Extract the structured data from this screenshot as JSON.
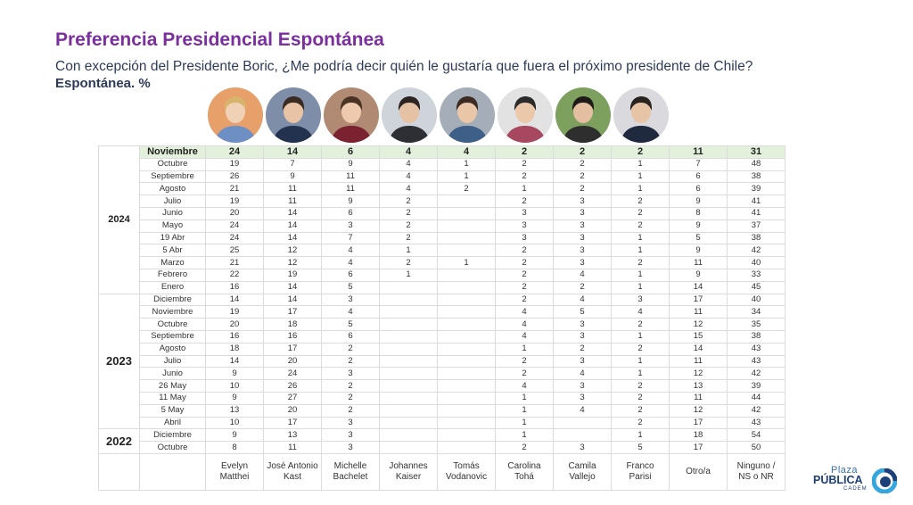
{
  "title": "Preferencia Presidencial Espontánea",
  "subtitle": "Con excepción del Presidente Boric, ¿Me podría decir quién le gustaría que fuera el próximo presidente de Chile?",
  "subtitle2": "Espontánea. %",
  "candidates": [
    {
      "name": "Evelyn\nMatthei",
      "avatar_icon": "person-portrait"
    },
    {
      "name": "José Antonio\nKast",
      "avatar_icon": "person-portrait"
    },
    {
      "name": "Michelle\nBachelet",
      "avatar_icon": "person-portrait"
    },
    {
      "name": "Johannes\nKaiser",
      "avatar_icon": "person-portrait"
    },
    {
      "name": "Tomás\nVodanovic",
      "avatar_icon": "person-portrait"
    },
    {
      "name": "Carolina\nTohá",
      "avatar_icon": "person-portrait"
    },
    {
      "name": "Camila\nVallejo",
      "avatar_icon": "person-portrait"
    },
    {
      "name": "Franco\nParisi",
      "avatar_icon": "person-portrait"
    },
    {
      "name": "Otro/a",
      "avatar_icon": ""
    },
    {
      "name": "Ninguno /\nNS o NR",
      "avatar_icon": ""
    }
  ],
  "years": [
    {
      "label": "2024",
      "rows": 12
    },
    {
      "label": "2023",
      "rows": 11
    },
    {
      "label": "2022",
      "rows": 2
    }
  ],
  "rows": [
    {
      "month": "Noviembre",
      "values": [
        "24",
        "14",
        "6",
        "4",
        "4",
        "2",
        "2",
        "2",
        "11",
        "31"
      ]
    },
    {
      "month": "Octubre",
      "values": [
        "19",
        "7",
        "9",
        "4",
        "1",
        "2",
        "2",
        "1",
        "7",
        "48"
      ]
    },
    {
      "month": "Septiembre",
      "values": [
        "26",
        "9",
        "11",
        "4",
        "1",
        "2",
        "2",
        "1",
        "6",
        "38"
      ]
    },
    {
      "month": "Agosto",
      "values": [
        "21",
        "11",
        "11",
        "4",
        "2",
        "1",
        "2",
        "1",
        "6",
        "39"
      ]
    },
    {
      "month": "Julio",
      "values": [
        "19",
        "11",
        "9",
        "2",
        "",
        "2",
        "3",
        "2",
        "9",
        "41"
      ]
    },
    {
      "month": "Junio",
      "values": [
        "20",
        "14",
        "6",
        "2",
        "",
        "3",
        "3",
        "2",
        "8",
        "41"
      ]
    },
    {
      "month": "Mayo",
      "values": [
        "24",
        "14",
        "3",
        "2",
        "",
        "3",
        "3",
        "2",
        "9",
        "37"
      ]
    },
    {
      "month": "19 Abr",
      "values": [
        "24",
        "14",
        "7",
        "2",
        "",
        "3",
        "3",
        "1",
        "5",
        "38"
      ]
    },
    {
      "month": "5 Abr",
      "values": [
        "25",
        "12",
        "4",
        "1",
        "",
        "2",
        "3",
        "1",
        "9",
        "42"
      ]
    },
    {
      "month": "Marzo",
      "values": [
        "21",
        "12",
        "4",
        "2",
        "1",
        "2",
        "3",
        "2",
        "11",
        "40"
      ]
    },
    {
      "month": "Febrero",
      "values": [
        "22",
        "19",
        "6",
        "1",
        "",
        "2",
        "4",
        "1",
        "9",
        "33"
      ]
    },
    {
      "month": "Enero",
      "values": [
        "16",
        "14",
        "5",
        "",
        "",
        "2",
        "2",
        "1",
        "14",
        "45"
      ]
    },
    {
      "month": "Diciembre",
      "values": [
        "14",
        "14",
        "3",
        "",
        "",
        "2",
        "4",
        "3",
        "17",
        "40"
      ]
    },
    {
      "month": "Noviembre",
      "values": [
        "19",
        "17",
        "4",
        "",
        "",
        "4",
        "5",
        "4",
        "11",
        "34"
      ]
    },
    {
      "month": "Octubre",
      "values": [
        "20",
        "18",
        "5",
        "",
        "",
        "4",
        "3",
        "2",
        "12",
        "35"
      ]
    },
    {
      "month": "Septiembre",
      "values": [
        "16",
        "16",
        "6",
        "",
        "",
        "4",
        "3",
        "1",
        "15",
        "38"
      ]
    },
    {
      "month": "Agosto",
      "values": [
        "18",
        "17",
        "2",
        "",
        "",
        "1",
        "2",
        "2",
        "14",
        "43"
      ]
    },
    {
      "month": "Julio",
      "values": [
        "14",
        "20",
        "2",
        "",
        "",
        "2",
        "3",
        "1",
        "11",
        "43"
      ]
    },
    {
      "month": "Junio",
      "values": [
        "9",
        "24",
        "3",
        "",
        "",
        "2",
        "4",
        "1",
        "12",
        "42"
      ]
    },
    {
      "month": "26 May",
      "values": [
        "10",
        "26",
        "2",
        "",
        "",
        "4",
        "3",
        "2",
        "13",
        "39"
      ]
    },
    {
      "month": "11 May",
      "values": [
        "9",
        "27",
        "2",
        "",
        "",
        "1",
        "3",
        "2",
        "11",
        "44"
      ]
    },
    {
      "month": "5 May",
      "values": [
        "13",
        "20",
        "2",
        "",
        "",
        "1",
        "4",
        "2",
        "12",
        "42"
      ]
    },
    {
      "month": "Abril",
      "values": [
        "10",
        "17",
        "3",
        "",
        "",
        "1",
        "",
        "2",
        "17",
        "43"
      ]
    },
    {
      "month": "Diciembre",
      "values": [
        "9",
        "13",
        "3",
        "",
        "",
        "1",
        "",
        "1",
        "18",
        "54"
      ]
    },
    {
      "month": "Octubre",
      "values": [
        "8",
        "11",
        "3",
        "",
        "",
        "2",
        "3",
        "5",
        "17",
        "50"
      ]
    }
  ],
  "logo": {
    "line1": "Plaza",
    "line2": "PÚBLICA",
    "line3": "CADEM"
  },
  "colors": {
    "title": "#7b2f9e",
    "subtitle": "#2d3b58",
    "highlight_row": "#e3f1dc",
    "logo_blue": "#1f3f78",
    "logo_accent": "#35a6de"
  }
}
